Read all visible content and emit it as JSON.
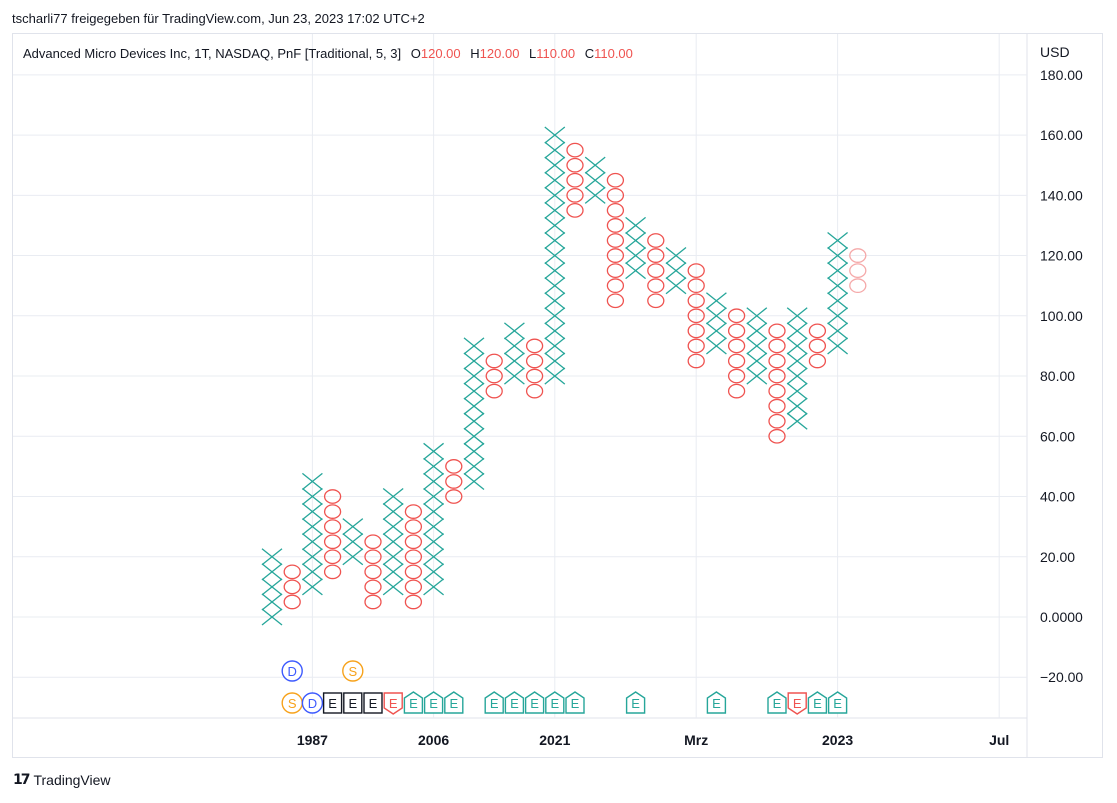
{
  "header": {
    "publisher_text": "tscharli77 freigegeben für TradingView.com, Jun 23, 2023 17:02 UTC+2"
  },
  "legend": {
    "title": "Advanced Micro Devices Inc, 1T, NASDAQ, PnF [Traditional, 5, 3]",
    "o_label": "O",
    "o_value": "120.00",
    "h_label": "H",
    "h_value": "120.00",
    "l_label": "L",
    "l_value": "110.00",
    "c_label": "C",
    "c_value": "110.00"
  },
  "footer": {
    "brand": "TradingView"
  },
  "colors": {
    "up": "#26a69a",
    "down": "#ef5350",
    "down_faded": "#f5a9a9",
    "dividend": "#3d5afe",
    "split": "#f7a21b",
    "earnings_neutral": "#131722",
    "grid": "#e9ecf2",
    "text": "#131722"
  },
  "chart_data": {
    "type": "point-and-figure",
    "box_size": 5,
    "reversal": 3,
    "currency_label": "USD",
    "y_ticks": [
      "180.00",
      "160.00",
      "140.00",
      "120.00",
      "100.00",
      "80.00",
      "60.00",
      "40.00",
      "20.00",
      "0.0000",
      "−20.00"
    ],
    "y_range": [
      -30,
      185
    ],
    "x_ticks": [
      {
        "label": "1987",
        "col": 1
      },
      {
        "label": "2006",
        "col": 7
      },
      {
        "label": "2021",
        "col": 13
      },
      {
        "label": "Mrz",
        "col": 20
      },
      {
        "label": "2023",
        "col": 27
      },
      {
        "label": "Jul",
        "col": 35
      }
    ],
    "columns": [
      {
        "type": "X",
        "low": 0,
        "high": 20
      },
      {
        "type": "O",
        "low": 5,
        "high": 15
      },
      {
        "type": "X",
        "low": 10,
        "high": 45
      },
      {
        "type": "O",
        "low": 15,
        "high": 40
      },
      {
        "type": "X",
        "low": 20,
        "high": 30
      },
      {
        "type": "O",
        "low": 5,
        "high": 25
      },
      {
        "type": "X",
        "low": 10,
        "high": 40
      },
      {
        "type": "O",
        "low": 5,
        "high": 35
      },
      {
        "type": "X",
        "low": 10,
        "high": 55
      },
      {
        "type": "O",
        "low": 40,
        "high": 50
      },
      {
        "type": "X",
        "low": 45,
        "high": 90
      },
      {
        "type": "O",
        "low": 75,
        "high": 85
      },
      {
        "type": "X",
        "low": 80,
        "high": 95
      },
      {
        "type": "O",
        "low": 75,
        "high": 90
      },
      {
        "type": "X",
        "low": 80,
        "high": 160
      },
      {
        "type": "O",
        "low": 135,
        "high": 155
      },
      {
        "type": "X",
        "low": 140,
        "high": 150
      },
      {
        "type": "O",
        "low": 105,
        "high": 145
      },
      {
        "type": "X",
        "low": 115,
        "high": 130
      },
      {
        "type": "O",
        "low": 105,
        "high": 125
      },
      {
        "type": "X",
        "low": 110,
        "high": 120
      },
      {
        "type": "O",
        "low": 85,
        "high": 115
      },
      {
        "type": "X",
        "low": 90,
        "high": 105
      },
      {
        "type": "O",
        "low": 75,
        "high": 100
      },
      {
        "type": "X",
        "low": 80,
        "high": 100
      },
      {
        "type": "O",
        "low": 60,
        "high": 95
      },
      {
        "type": "X",
        "low": 65,
        "high": 100
      },
      {
        "type": "O",
        "low": 85,
        "high": 95
      },
      {
        "type": "X",
        "low": 90,
        "high": 125
      },
      {
        "type": "O",
        "low": 110,
        "high": 120,
        "projected": true
      }
    ],
    "events_row1": [
      {
        "col": 1,
        "kind": "dividend",
        "label": "D"
      },
      {
        "col": 4,
        "kind": "split",
        "label": "S"
      }
    ],
    "events_row2": [
      {
        "col": 1,
        "kind": "split",
        "label": "S"
      },
      {
        "col": 2,
        "kind": "dividend",
        "label": "D"
      },
      {
        "col": 3,
        "kind": "earnings-neutral",
        "label": "E"
      },
      {
        "col": 4,
        "kind": "earnings-neutral",
        "label": "E"
      },
      {
        "col": 5,
        "kind": "earnings-neutral",
        "label": "E"
      },
      {
        "col": 6,
        "kind": "earnings-down",
        "label": "E"
      },
      {
        "col": 7,
        "kind": "earnings-up",
        "label": "E"
      },
      {
        "col": 8,
        "kind": "earnings-up",
        "label": "E"
      },
      {
        "col": 9,
        "kind": "earnings-up",
        "label": "E"
      },
      {
        "col": 11,
        "kind": "earnings-up",
        "label": "E"
      },
      {
        "col": 12,
        "kind": "earnings-up",
        "label": "E"
      },
      {
        "col": 13,
        "kind": "earnings-up",
        "label": "E"
      },
      {
        "col": 14,
        "kind": "earnings-up",
        "label": "E"
      },
      {
        "col": 15,
        "kind": "earnings-up",
        "label": "E"
      },
      {
        "col": 18,
        "kind": "earnings-up",
        "label": "E"
      },
      {
        "col": 22,
        "kind": "earnings-up",
        "label": "E"
      },
      {
        "col": 25,
        "kind": "earnings-up",
        "label": "E"
      },
      {
        "col": 26,
        "kind": "earnings-down",
        "label": "E"
      },
      {
        "col": 27,
        "kind": "earnings-up",
        "label": "E"
      },
      {
        "col": 28,
        "kind": "earnings-up",
        "label": "E"
      }
    ]
  }
}
